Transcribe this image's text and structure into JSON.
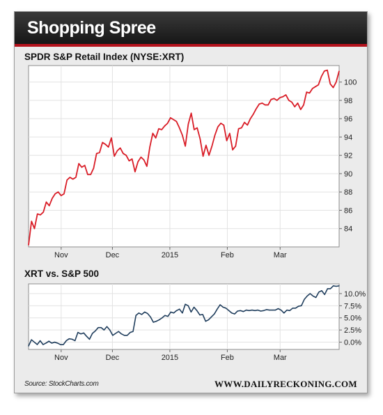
{
  "header": {
    "title": "Shopping Spree"
  },
  "footer": {
    "source": "Source: StockCharts.com",
    "site": "WWW.DAILYRECKONING.COM"
  },
  "colors": {
    "price_line": "#d91c26",
    "relative_line": "#1f3d5c",
    "header_accent": "#b3121c"
  },
  "chart_data": [
    {
      "type": "line",
      "title": "SPDR S&P Retail Index (NYSE:XRT)",
      "xlabel": "",
      "ylabel": "",
      "x_tick_labels": [
        "Nov",
        "Dec",
        "2015",
        "Feb",
        "Mar"
      ],
      "y_ticks": [
        84,
        86,
        88,
        90,
        92,
        94,
        96,
        98,
        100
      ],
      "y_tick_labels": [
        "84",
        "86",
        "88",
        "90",
        "92",
        "94",
        "96",
        "98",
        "100"
      ],
      "ylim": [
        82,
        101.8
      ],
      "y_axis_side": "right",
      "grid": true,
      "series": [
        {
          "values": [
            82.2,
            84.8,
            84.0,
            85.6,
            85.5,
            85.8,
            86.9,
            86.5,
            87.3,
            87.8,
            88.0,
            87.6,
            87.8,
            89.3,
            89.6,
            89.4,
            89.6,
            91.1,
            90.7,
            90.9,
            89.9,
            89.9,
            90.6,
            92.2,
            92.3,
            93.4,
            93.2,
            92.9,
            93.9,
            91.9,
            92.5,
            92.8,
            92.2,
            92.0,
            91.4,
            91.6,
            90.2,
            91.3,
            91.8,
            91.5,
            90.8,
            92.9,
            94.4,
            93.9,
            94.9,
            94.8,
            95.2,
            95.5,
            96.1,
            95.9,
            95.7,
            95.0,
            94.2,
            93.0,
            95.4,
            96.6,
            94.8,
            95.0,
            93.8,
            91.9,
            93.1,
            92.0,
            93.0,
            94.2,
            95.1,
            95.5,
            95.3,
            93.6,
            94.4,
            92.6,
            93.0,
            94.9,
            95.0,
            95.6,
            95.3,
            96.0,
            96.5,
            97.1,
            97.6,
            97.7,
            97.5,
            97.5,
            98.1,
            98.2,
            98.0,
            98.3,
            98.4,
            98.6,
            98.0,
            97.8,
            97.3,
            97.7,
            97.0,
            97.5,
            98.9,
            98.8,
            99.3,
            99.5,
            99.7,
            100.6,
            101.2,
            101.3,
            99.8,
            99.4,
            100.0,
            101.2
          ]
        }
      ]
    },
    {
      "type": "line",
      "title": "XRT vs. S&P 500",
      "xlabel": "",
      "ylabel": "",
      "x_tick_labels": [
        "Nov",
        "Dec",
        "2015",
        "Feb",
        "Mar"
      ],
      "y_ticks": [
        0,
        2.5,
        5,
        7.5,
        10
      ],
      "y_tick_labels": [
        "0.0%",
        "2.5%",
        "5.0%",
        "7.5%",
        "10.0%"
      ],
      "ylim": [
        -1.5,
        12
      ],
      "y_axis_side": "right",
      "grid": true,
      "series": [
        {
          "values": [
            -0.8,
            0.5,
            0.0,
            -0.5,
            0.3,
            -0.5,
            -0.2,
            0.2,
            -0.2,
            0.0,
            -0.2,
            -0.5,
            -0.5,
            0.3,
            0.7,
            0.6,
            0.3,
            2.0,
            1.7,
            1.9,
            1.2,
            0.6,
            1.8,
            2.3,
            3.0,
            3.0,
            2.5,
            3.2,
            2.5,
            1.4,
            1.8,
            2.2,
            1.7,
            1.4,
            1.4,
            2.0,
            2.2,
            5.5,
            6.0,
            5.7,
            6.2,
            5.9,
            5.2,
            4.1,
            4.3,
            4.6,
            5.0,
            5.5,
            5.3,
            6.2,
            6.0,
            6.5,
            6.8,
            6.0,
            7.8,
            7.5,
            6.2,
            7.2,
            6.5,
            5.6,
            5.7,
            4.3,
            4.6,
            5.2,
            5.8,
            6.8,
            7.7,
            7.2,
            7.0,
            6.5,
            6.0,
            5.8,
            6.4,
            6.5,
            6.3,
            6.6,
            6.5,
            6.6,
            6.5,
            6.6,
            6.4,
            6.5,
            6.7,
            6.6,
            6.6,
            6.6,
            6.9,
            6.6,
            6.0,
            6.6,
            6.5,
            7.0,
            7.0,
            7.4,
            7.5,
            8.8,
            9.5,
            10.0,
            9.5,
            9.2,
            10.3,
            10.6,
            9.8,
            11.0,
            11.0,
            11.6,
            11.5,
            11.6
          ]
        }
      ]
    }
  ]
}
